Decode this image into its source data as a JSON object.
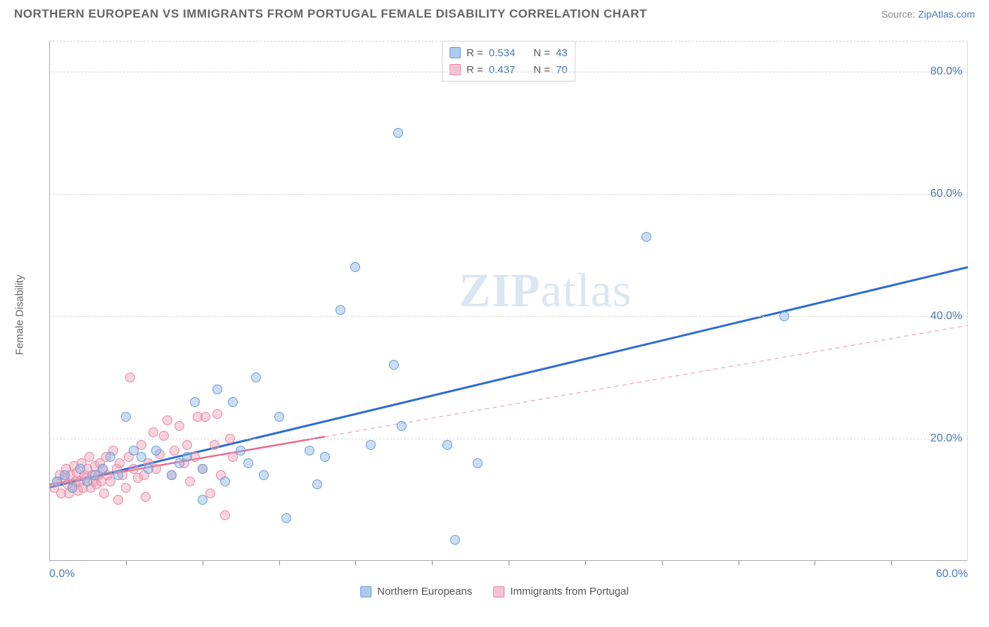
{
  "header": {
    "title": "NORTHERN EUROPEAN VS IMMIGRANTS FROM PORTUGAL FEMALE DISABILITY CORRELATION CHART",
    "source_prefix": "Source: ",
    "source_link": "ZipAtlas.com"
  },
  "chart": {
    "type": "scatter",
    "ylabel": "Female Disability",
    "watermark_zip": "ZIP",
    "watermark_atlas": "atlas",
    "background_color": "#ffffff",
    "grid_color": "#d8d8d8",
    "axis_color": "#aaaaaa",
    "tick_label_color": "#4a7ab5",
    "xlim": [
      0,
      60
    ],
    "ylim": [
      0,
      85
    ],
    "ytick_values": [
      20,
      40,
      60,
      80
    ],
    "ytick_labels": [
      "20.0%",
      "40.0%",
      "60.0%",
      "80.0%"
    ],
    "xtick_values": [
      0,
      60
    ],
    "xtick_labels": [
      "0.0%",
      "60.0%"
    ],
    "xtick_minor": [
      5,
      10,
      15,
      20,
      25,
      30,
      35,
      40,
      45,
      50,
      55
    ],
    "series": {
      "blue": {
        "name": "Northern Europeans",
        "color_fill": "rgba(140,180,230,0.45)",
        "color_stroke": "#6a9dd9",
        "marker_size": 14,
        "r": "0.534",
        "n": "43",
        "regression": {
          "x1": 0,
          "y1": 12,
          "x2": 60,
          "y2": 48,
          "solid_to_x": 60,
          "line_color": "#2d6cd2",
          "line_width": 3
        },
        "points": [
          [
            0.5,
            13
          ],
          [
            1,
            14
          ],
          [
            1.5,
            12
          ],
          [
            2,
            15
          ],
          [
            2.5,
            13
          ],
          [
            3,
            14
          ],
          [
            3.5,
            15
          ],
          [
            4,
            17
          ],
          [
            4.5,
            14
          ],
          [
            5,
            23.5
          ],
          [
            5.5,
            18
          ],
          [
            6,
            17
          ],
          [
            6.5,
            15
          ],
          [
            7,
            18
          ],
          [
            8,
            14
          ],
          [
            8.5,
            16
          ],
          [
            9,
            17
          ],
          [
            9.5,
            26
          ],
          [
            10,
            15
          ],
          [
            10,
            10
          ],
          [
            11,
            28
          ],
          [
            11.5,
            13
          ],
          [
            12,
            26
          ],
          [
            12.5,
            18
          ],
          [
            13,
            16
          ],
          [
            13.5,
            30
          ],
          [
            14,
            14
          ],
          [
            15,
            23.5
          ],
          [
            15.5,
            7
          ],
          [
            17,
            18
          ],
          [
            17.5,
            12.5
          ],
          [
            18,
            17
          ],
          [
            19,
            41
          ],
          [
            20,
            48
          ],
          [
            21,
            19
          ],
          [
            22.5,
            32
          ],
          [
            22.8,
            70
          ],
          [
            23,
            22
          ],
          [
            26,
            19
          ],
          [
            26.5,
            3.5
          ],
          [
            28,
            16
          ],
          [
            39,
            53
          ],
          [
            48,
            40
          ]
        ]
      },
      "pink": {
        "name": "Immigrants from Portugal",
        "color_fill": "rgba(240,160,180,0.45)",
        "color_stroke": "#e88aa2",
        "marker_size": 14,
        "r": "0.437",
        "n": "70",
        "regression": {
          "x1": 0,
          "y1": 12.5,
          "x2": 60,
          "y2": 38.5,
          "solid_to_x": 18,
          "line_color_solid": "#e56b8a",
          "line_color_dash": "#f0b5c5",
          "line_width": 2.5
        },
        "points": [
          [
            0.3,
            12
          ],
          [
            0.5,
            13
          ],
          [
            0.7,
            14
          ],
          [
            0.8,
            11
          ],
          [
            1,
            13.5
          ],
          [
            1.1,
            15
          ],
          [
            1.2,
            12.5
          ],
          [
            1.3,
            11
          ],
          [
            1.4,
            14
          ],
          [
            1.5,
            12
          ],
          [
            1.6,
            15.5
          ],
          [
            1.7,
            13
          ],
          [
            1.8,
            14.5
          ],
          [
            1.9,
            11.5
          ],
          [
            2,
            13
          ],
          [
            2.1,
            16
          ],
          [
            2.2,
            12
          ],
          [
            2.3,
            14
          ],
          [
            2.4,
            13.5
          ],
          [
            2.5,
            15
          ],
          [
            2.6,
            17
          ],
          [
            2.7,
            12
          ],
          [
            2.8,
            14
          ],
          [
            2.9,
            13
          ],
          [
            3,
            15.5
          ],
          [
            3.1,
            12.5
          ],
          [
            3.2,
            14
          ],
          [
            3.3,
            16
          ],
          [
            3.4,
            13
          ],
          [
            3.5,
            15
          ],
          [
            3.6,
            11
          ],
          [
            3.7,
            17
          ],
          [
            3.8,
            14
          ],
          [
            4,
            13
          ],
          [
            4.2,
            18
          ],
          [
            4.4,
            15
          ],
          [
            4.5,
            10
          ],
          [
            4.6,
            16
          ],
          [
            4.8,
            14
          ],
          [
            5,
            12
          ],
          [
            5.2,
            17
          ],
          [
            5.3,
            30
          ],
          [
            5.5,
            15
          ],
          [
            5.8,
            13.5
          ],
          [
            6,
            19
          ],
          [
            6.2,
            14
          ],
          [
            6.3,
            10.5
          ],
          [
            6.5,
            16
          ],
          [
            6.8,
            21
          ],
          [
            7,
            15
          ],
          [
            7.2,
            17.5
          ],
          [
            7.5,
            20.5
          ],
          [
            7.7,
            23
          ],
          [
            8,
            14
          ],
          [
            8.2,
            18
          ],
          [
            8.5,
            22
          ],
          [
            8.8,
            16
          ],
          [
            9,
            19
          ],
          [
            9.2,
            13
          ],
          [
            9.5,
            17
          ],
          [
            9.7,
            23.5
          ],
          [
            10,
            15
          ],
          [
            10.2,
            23.5
          ],
          [
            10.5,
            11
          ],
          [
            10.8,
            19
          ],
          [
            11,
            24
          ],
          [
            11.2,
            14
          ],
          [
            11.5,
            7.5
          ],
          [
            11.8,
            20
          ],
          [
            12,
            17
          ]
        ]
      }
    },
    "legend_top": {
      "r_label": "R =",
      "n_label": "N ="
    },
    "legend_bottom": {
      "series1_label": "Northern Europeans",
      "series2_label": "Immigrants from Portugal"
    }
  }
}
